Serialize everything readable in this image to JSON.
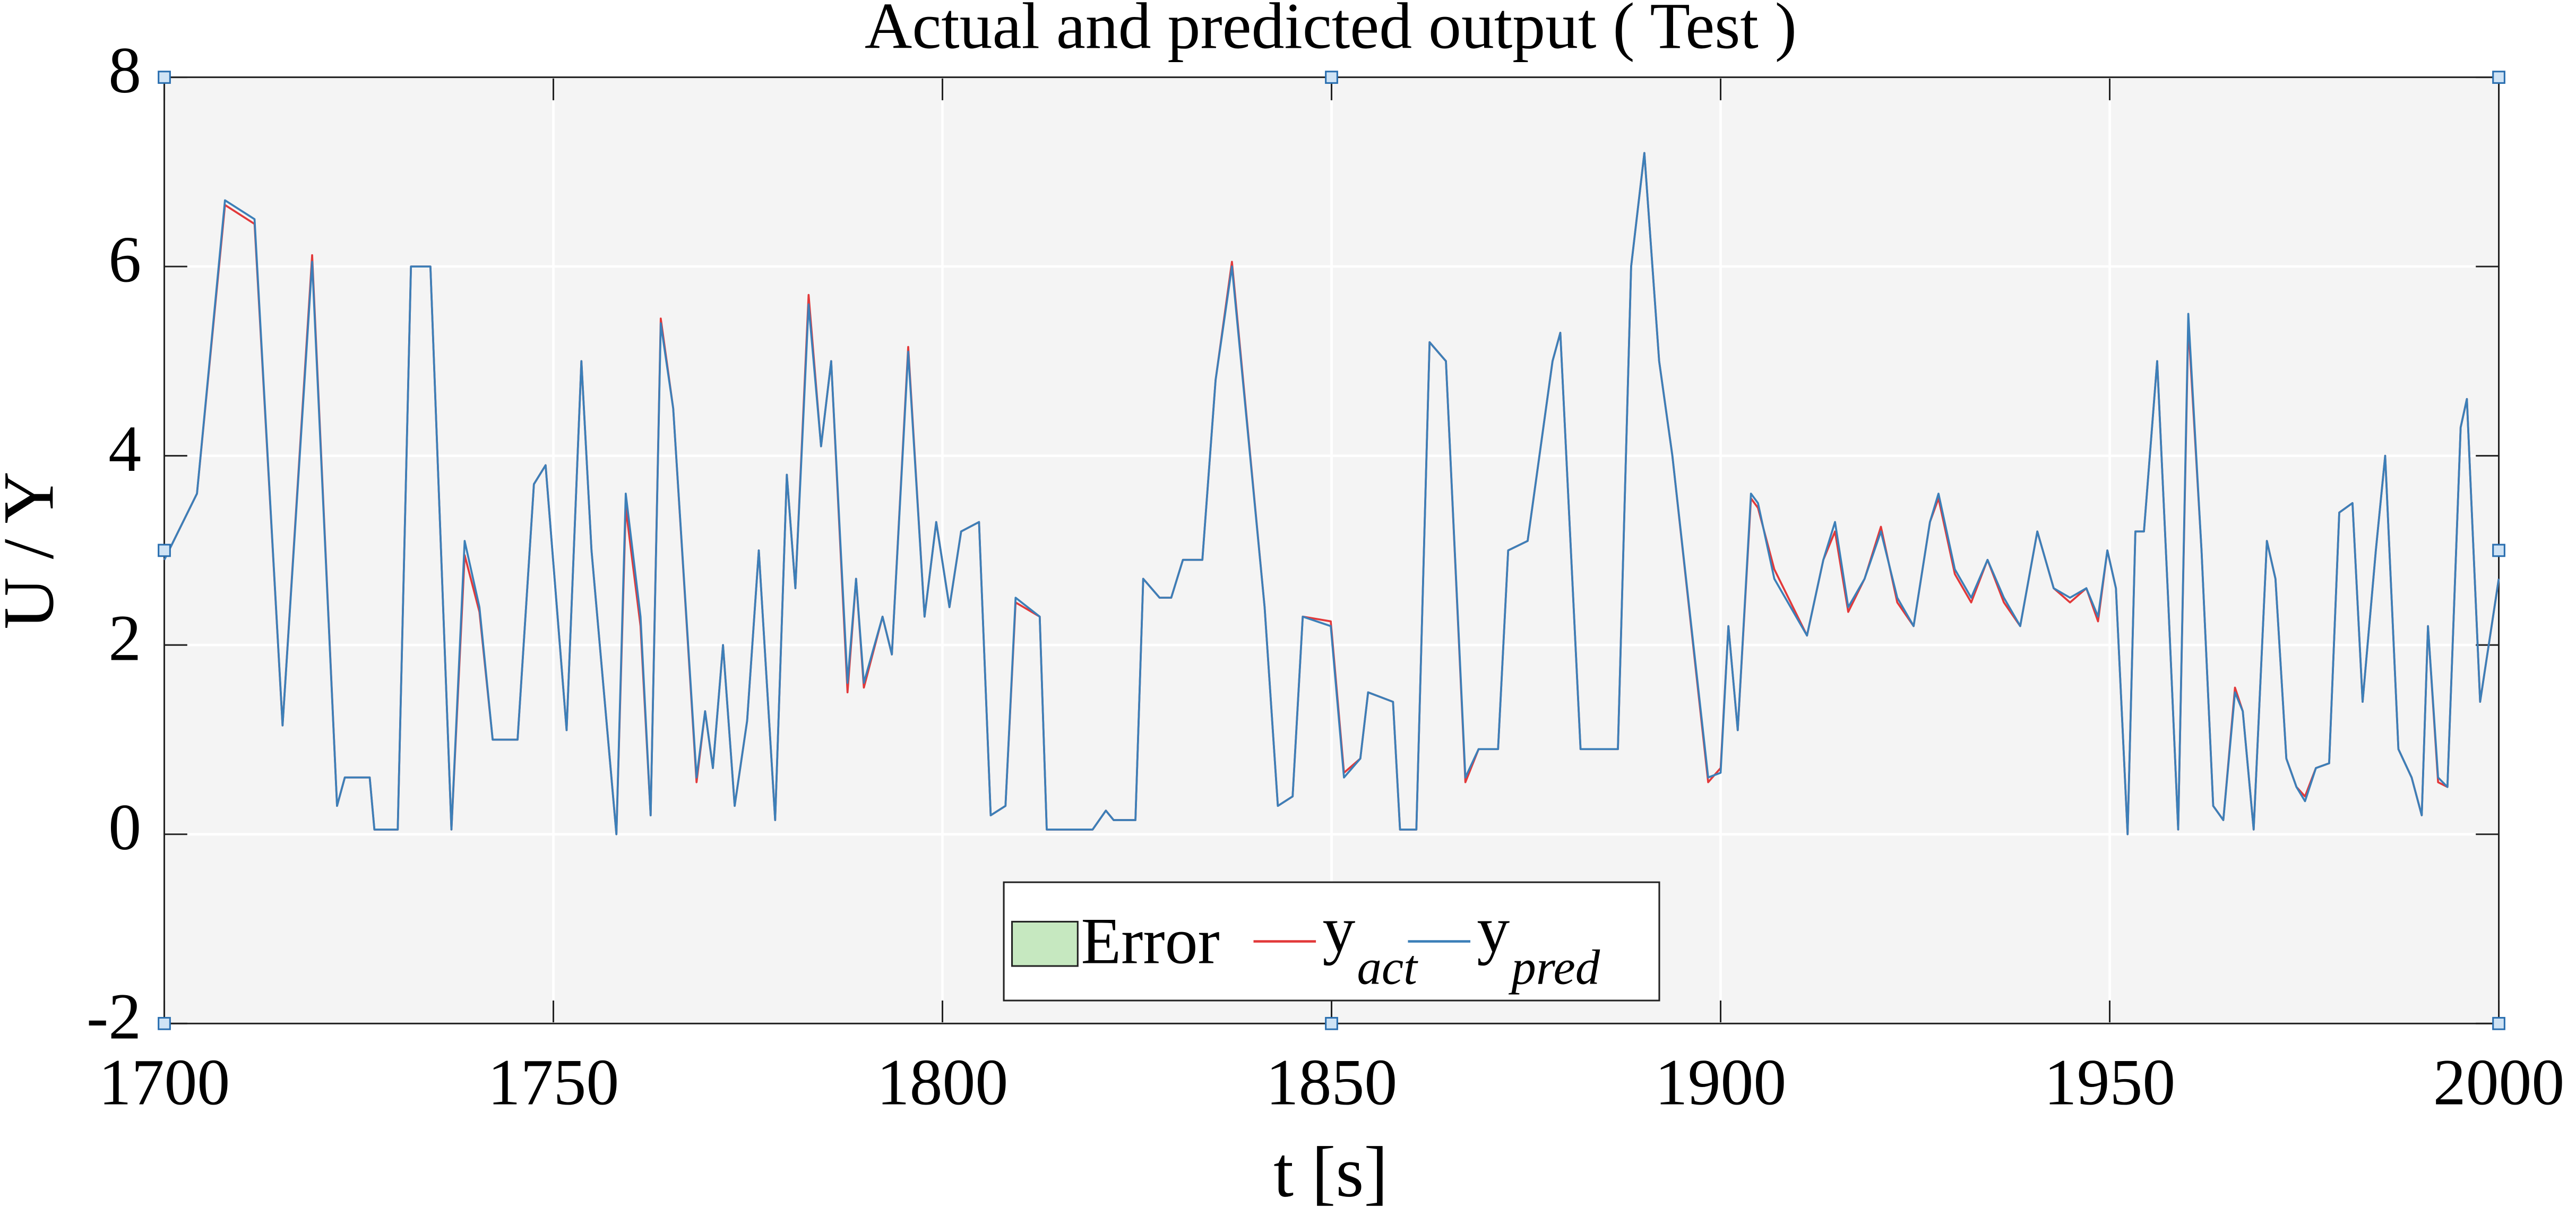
{
  "chart_data": {
    "type": "line",
    "title": "Actual and predicted output ( Test  )",
    "xlabel": "t [s]",
    "ylabel": "U / Y",
    "xlim": [
      1700,
      2000
    ],
    "ylim": [
      -2,
      8
    ],
    "xticks": [
      1700,
      1750,
      1800,
      1850,
      1900,
      1950,
      2000
    ],
    "yticks": [
      -2,
      0,
      2,
      4,
      6,
      8
    ],
    "grid": true,
    "legend": "bottom",
    "error": {
      "name": "Error",
      "color": "#c6e8c0"
    },
    "x": [
      1700.0,
      1704.2,
      1707.8,
      1711.6,
      1715.2,
      1719.0,
      1722.2,
      1723.2,
      1726.4,
      1727.0,
      1730.0,
      1731.7,
      1734.2,
      1736.9,
      1738.6,
      1740.5,
      1742.2,
      1745.4,
      1747.5,
      1749.0,
      1751.7,
      1753.6,
      1754.9,
      1758.1,
      1759.3,
      1761.2,
      1762.5,
      1763.8,
      1765.4,
      1768.4,
      1769.5,
      1770.5,
      1771.8,
      1773.3,
      1774.9,
      1776.4,
      1778.5,
      1780.0,
      1781.1,
      1782.8,
      1784.4,
      1785.7,
      1787.8,
      1788.9,
      1789.9,
      1792.3,
      1793.5,
      1795.6,
      1797.7,
      1799.2,
      1800.9,
      1802.4,
      1804.7,
      1806.2,
      1808.1,
      1809.4,
      1812.5,
      1813.4,
      1819.3,
      1821.0,
      1822.0,
      1824.8,
      1825.8,
      1827.9,
      1829.4,
      1830.9,
      1833.4,
      1835.1,
      1837.2,
      1841.4,
      1843.1,
      1845.0,
      1846.3,
      1849.9,
      1851.6,
      1853.7,
      1854.7,
      1857.9,
      1858.8,
      1860.9,
      1862.6,
      1864.7,
      1867.2,
      1868.9,
      1871.4,
      1872.7,
      1875.2,
      1878.4,
      1879.4,
      1882.0,
      1886.8,
      1888.5,
      1890.2,
      1892.1,
      1893.8,
      1898.4,
      1900.0,
      1901.0,
      1902.2,
      1903.9,
      1904.8,
      1906.9,
      1909.0,
      1911.1,
      1913.2,
      1914.7,
      1916.4,
      1918.5,
      1920.6,
      1922.7,
      1924.8,
      1926.9,
      1928.0,
      1930.1,
      1932.2,
      1934.3,
      1936.4,
      1938.5,
      1940.7,
      1942.8,
      1944.9,
      1947.0,
      1948.5,
      1949.7,
      1950.8,
      1952.3,
      1953.3,
      1954.4,
      1956.1,
      1957.5,
      1958.8,
      1960.1,
      1961.8,
      1963.3,
      1964.6,
      1966.1,
      1967.1,
      1968.5,
      1970.2,
      1971.3,
      1972.7,
      1974.0,
      1975.1,
      1976.5,
      1978.2,
      1979.5,
      1981.2,
      1982.5,
      1984.2,
      1985.4,
      1987.1,
      1988.8,
      1990.1,
      1990.9,
      1992.2,
      1993.4,
      1995.1,
      1995.9,
      1997.6,
      2000.0
    ],
    "series": [
      {
        "name": "y",
        "name_sub": "act",
        "color": "#e2393a",
        "values": [
          2.9,
          3.6,
          6.65,
          6.45,
          1.15,
          6.12,
          0.3,
          0.6,
          0.6,
          0.05,
          0.05,
          6.0,
          6.0,
          0.05,
          2.95,
          2.35,
          1.0,
          1.0,
          3.7,
          3.9,
          1.1,
          5.0,
          3.0,
          0.0,
          3.45,
          2.2,
          0.2,
          5.45,
          4.5,
          0.55,
          1.3,
          0.7,
          2.0,
          0.3,
          1.2,
          3.0,
          0.15,
          3.8,
          2.6,
          5.7,
          4.1,
          5.0,
          1.5,
          2.7,
          1.55,
          2.3,
          1.9,
          5.15,
          2.3,
          3.3,
          2.4,
          3.2,
          3.3,
          0.2,
          0.3,
          2.45,
          2.3,
          0.05,
          0.05,
          0.25,
          0.15,
          0.15,
          2.7,
          2.5,
          2.5,
          2.9,
          2.9,
          4.8,
          6.05,
          2.4,
          0.3,
          0.4,
          2.3,
          2.25,
          0.65,
          0.8,
          1.5,
          1.4,
          0.05,
          0.05,
          5.2,
          5.0,
          0.55,
          0.9,
          0.9,
          3.0,
          3.1,
          5.0,
          5.3,
          0.9,
          0.9,
          6.0,
          7.2,
          5.0,
          4.0,
          0.55,
          0.7,
          2.2,
          1.1,
          3.55,
          3.45,
          2.8,
          2.45,
          2.1,
          2.9,
          3.2,
          2.35,
          2.7,
          3.25,
          2.45,
          2.2,
          3.3,
          3.55,
          2.75,
          2.45,
          2.9,
          2.45,
          2.2,
          3.2,
          2.6,
          2.45,
          2.6,
          2.25,
          3.0,
          2.6,
          0.0,
          3.2,
          3.2,
          5.0,
          2.5,
          0.05,
          5.4,
          3.0,
          0.3,
          0.15,
          1.55,
          1.3,
          0.05,
          3.1,
          2.7,
          0.8,
          0.5,
          0.4,
          0.7,
          0.75,
          3.4,
          3.5,
          1.4,
          3.0,
          4.0,
          0.9,
          0.6,
          0.2,
          2.2,
          0.55,
          0.5,
          4.3,
          4.6,
          1.4,
          2.7
        ]
      },
      {
        "name": "y",
        "name_sub": "pred",
        "color": "#3c7fb8",
        "values": [
          2.9,
          3.6,
          6.7,
          6.5,
          1.15,
          6.05,
          0.3,
          0.6,
          0.6,
          0.05,
          0.05,
          6.0,
          6.0,
          0.05,
          3.1,
          2.4,
          1.0,
          1.0,
          3.7,
          3.9,
          1.1,
          5.0,
          3.0,
          0.0,
          3.6,
          2.3,
          0.2,
          5.4,
          4.5,
          0.6,
          1.3,
          0.7,
          2.0,
          0.3,
          1.2,
          3.0,
          0.15,
          3.8,
          2.6,
          5.6,
          4.1,
          5.0,
          1.6,
          2.7,
          1.6,
          2.3,
          1.9,
          5.1,
          2.3,
          3.3,
          2.4,
          3.2,
          3.3,
          0.2,
          0.3,
          2.5,
          2.3,
          0.05,
          0.05,
          0.25,
          0.15,
          0.15,
          2.7,
          2.5,
          2.5,
          2.9,
          2.9,
          4.8,
          6.0,
          2.4,
          0.3,
          0.4,
          2.3,
          2.2,
          0.6,
          0.8,
          1.5,
          1.4,
          0.05,
          0.05,
          5.2,
          5.0,
          0.6,
          0.9,
          0.9,
          3.0,
          3.1,
          5.0,
          5.3,
          0.9,
          0.9,
          6.0,
          7.2,
          5.0,
          4.0,
          0.6,
          0.65,
          2.2,
          1.1,
          3.6,
          3.5,
          2.7,
          2.4,
          2.1,
          2.9,
          3.3,
          2.4,
          2.7,
          3.2,
          2.5,
          2.2,
          3.3,
          3.6,
          2.8,
          2.5,
          2.9,
          2.5,
          2.2,
          3.2,
          2.6,
          2.5,
          2.6,
          2.3,
          3.0,
          2.6,
          0.0,
          3.2,
          3.2,
          5.0,
          2.5,
          0.05,
          5.5,
          3.0,
          0.3,
          0.15,
          1.5,
          1.3,
          0.05,
          3.1,
          2.7,
          0.8,
          0.5,
          0.35,
          0.7,
          0.75,
          3.4,
          3.5,
          1.4,
          3.0,
          4.0,
          0.9,
          0.6,
          0.2,
          2.2,
          0.6,
          0.5,
          4.3,
          4.6,
          1.4,
          2.7
        ]
      }
    ]
  }
}
